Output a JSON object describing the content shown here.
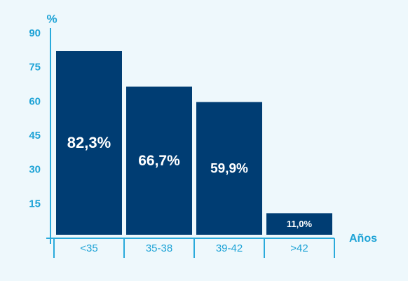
{
  "chart_data": {
    "type": "bar",
    "y_label": "%",
    "x_label": "Años",
    "categories": [
      "<35",
      "35-38",
      "39-42",
      ">42"
    ],
    "values": [
      82.3,
      66.7,
      59.9,
      11.0
    ],
    "value_labels": [
      "82,3%",
      "66,7%",
      "59,9%",
      "11,0%"
    ],
    "color": "#003d73",
    "ylim": [
      0,
      90
    ],
    "yticks": [
      15,
      30,
      45,
      60,
      75,
      90
    ]
  }
}
